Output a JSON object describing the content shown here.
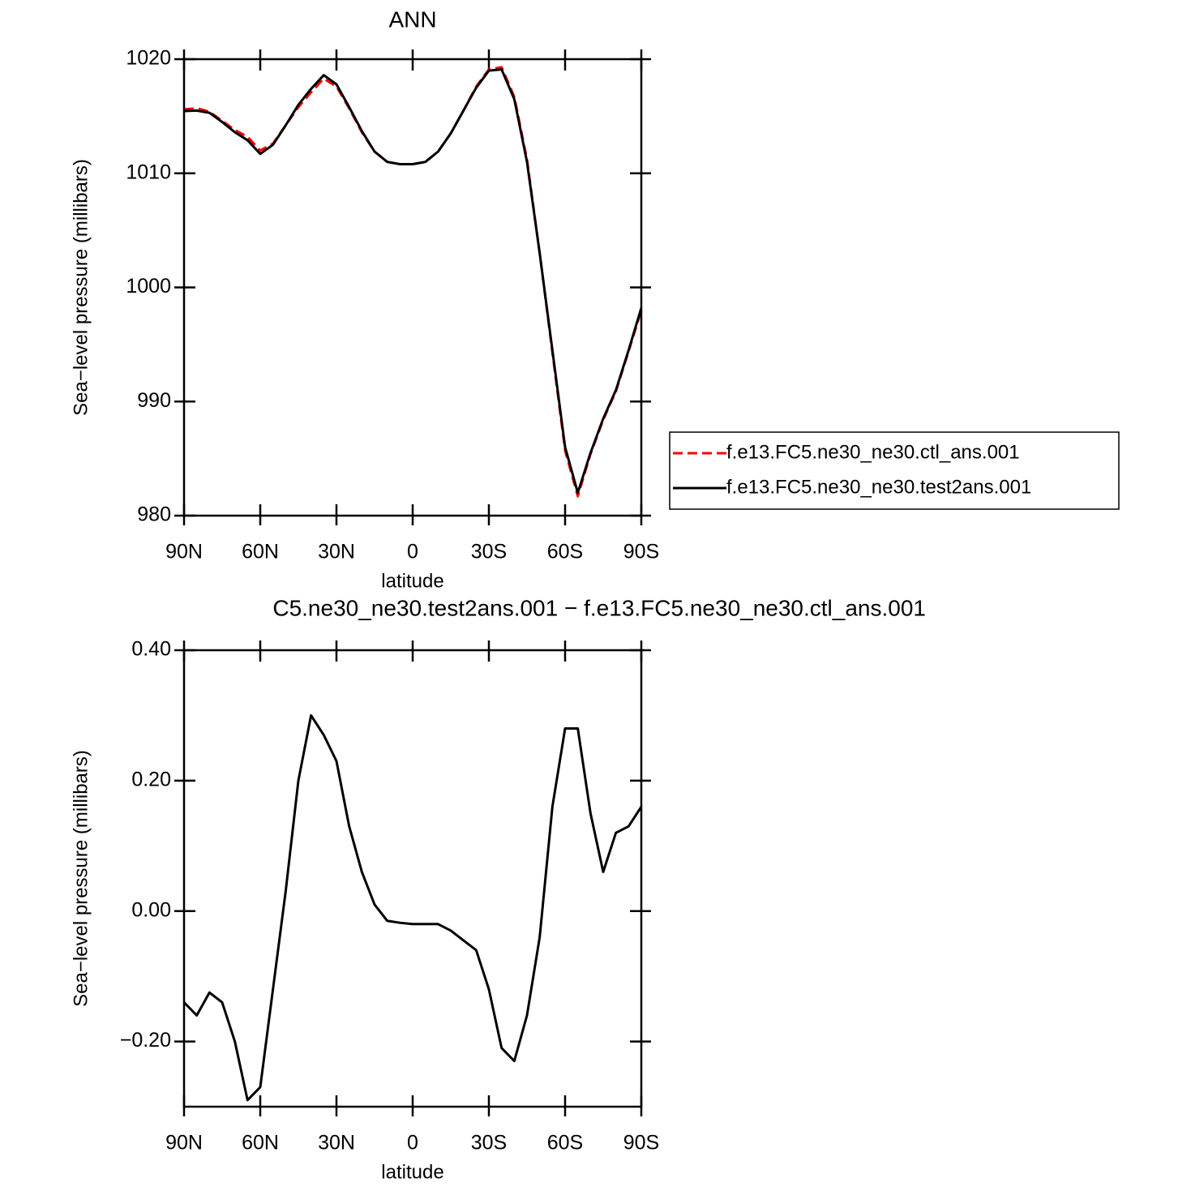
{
  "chart_data": [
    {
      "type": "line",
      "title": "ANN",
      "xlabel": "latitude",
      "ylabel": "Sea−level pressure (millibars)",
      "x": [
        90,
        85,
        80,
        75,
        70,
        65,
        60,
        55,
        50,
        45,
        40,
        35,
        30,
        25,
        20,
        15,
        10,
        5,
        0,
        -5,
        -10,
        -15,
        -20,
        -25,
        -30,
        -35,
        -40,
        -45,
        -50,
        -55,
        -60,
        -65,
        -70,
        -75,
        -80,
        -85,
        -90
      ],
      "xlim": [
        90,
        -90
      ],
      "xticks": [
        {
          "value": 90,
          "label": "90N"
        },
        {
          "value": 60,
          "label": "60N"
        },
        {
          "value": 30,
          "label": "30N"
        },
        0,
        {
          "value": -30,
          "label": "30S"
        },
        {
          "value": -60,
          "label": "60S"
        },
        {
          "value": -90,
          "label": "90S"
        }
      ],
      "ylim": [
        980,
        1020
      ],
      "yticks": [
        980,
        990,
        1000,
        1010,
        1020
      ],
      "legend": "right",
      "series": [
        {
          "name": "f.e13.FC5.ne30_ne30.ctl_ans.001",
          "color": "#ff0000",
          "dash": true,
          "values": [
            1015.6,
            1015.7,
            1015.4,
            1014.6,
            1013.8,
            1013.2,
            1012.0,
            1012.6,
            1014.2,
            1015.8,
            1017.1,
            1018.3,
            1017.6,
            1015.7,
            1013.6,
            1011.9,
            1011.0,
            1010.8,
            1010.8,
            1011.0,
            1011.9,
            1013.5,
            1015.5,
            1017.6,
            1019.1,
            1019.3,
            1016.7,
            1011.2,
            1003.0,
            994.3,
            985.7,
            981.7,
            985.4,
            988.4,
            990.9,
            994.4,
            998.0
          ]
        },
        {
          "name": "f.e13.FC5.ne30_ne30.test2ans.001",
          "color": "#000000",
          "dash": false,
          "values": [
            1015.45,
            1015.5,
            1015.3,
            1014.5,
            1013.6,
            1012.9,
            1011.7,
            1012.5,
            1014.2,
            1016.0,
            1017.4,
            1018.6,
            1017.8,
            1015.8,
            1013.7,
            1011.9,
            1011.0,
            1010.8,
            1010.8,
            1011.0,
            1011.9,
            1013.5,
            1015.5,
            1017.5,
            1019.0,
            1019.1,
            1016.5,
            1011.0,
            1003.0,
            994.5,
            986.0,
            982.0,
            985.5,
            988.5,
            991.0,
            994.5,
            998.2
          ]
        }
      ]
    },
    {
      "type": "line",
      "title": "C5.ne30_ne30.test2ans.001 − f.e13.FC5.ne30_ne30.ctl_ans.001",
      "xlabel": "latitude",
      "ylabel": "Sea−level pressure (millibars)",
      "x": [
        90,
        85,
        80,
        75,
        70,
        65,
        60,
        55,
        50,
        45,
        40,
        35,
        30,
        25,
        20,
        15,
        10,
        5,
        0,
        -5,
        -10,
        -15,
        -20,
        -25,
        -30,
        -35,
        -40,
        -45,
        -50,
        -55,
        -60,
        -65,
        -70,
        -75,
        -80,
        -85,
        -90
      ],
      "xlim": [
        90,
        -90
      ],
      "xticks": [
        {
          "value": 90,
          "label": "90N"
        },
        {
          "value": 60,
          "label": "60N"
        },
        {
          "value": 30,
          "label": "30N"
        },
        0,
        {
          "value": -30,
          "label": "30S"
        },
        {
          "value": -60,
          "label": "60S"
        },
        {
          "value": -90,
          "label": "90S"
        }
      ],
      "ylim": [
        -0.3,
        0.4
      ],
      "yticks": [
        {
          "value": -0.2,
          "label": "−0.20"
        },
        {
          "value": 0,
          "label": "0.00"
        },
        {
          "value": 0.2,
          "label": "0.20"
        },
        {
          "value": 0.4,
          "label": "0.40"
        }
      ],
      "series": [
        {
          "color": "#000000",
          "dash": false,
          "values": [
            -0.14,
            -0.16,
            -0.125,
            -0.14,
            -0.2,
            -0.29,
            -0.27,
            -0.12,
            0.03,
            0.2,
            0.3,
            0.27,
            0.23,
            0.13,
            0.06,
            0.01,
            -0.015,
            -0.018,
            -0.02,
            -0.02,
            -0.02,
            -0.03,
            -0.045,
            -0.06,
            -0.12,
            -0.21,
            -0.23,
            -0.16,
            -0.04,
            0.16,
            0.28,
            0.28,
            0.15,
            0.06,
            0.12,
            0.13,
            0.16
          ]
        }
      ]
    }
  ]
}
